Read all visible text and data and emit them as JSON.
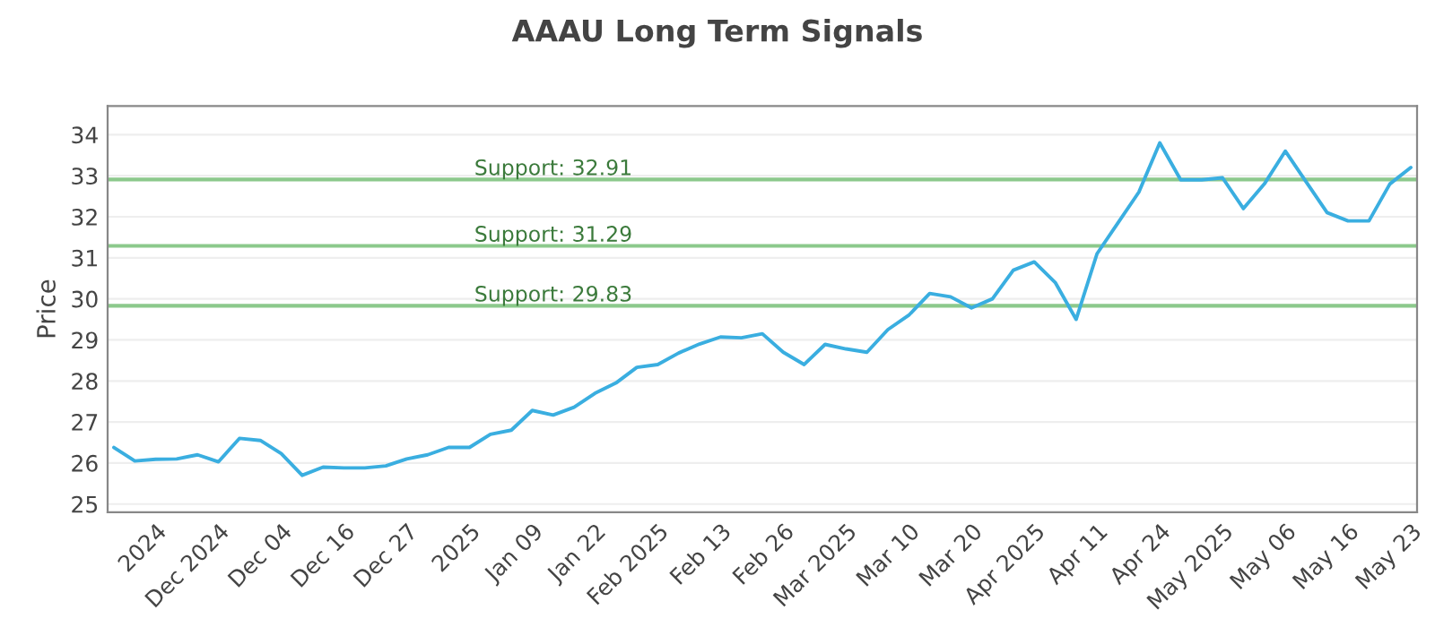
{
  "chart_data": {
    "type": "line",
    "title": "AAAU Long Term Signals",
    "ylabel": "Price",
    "categories": [
      null,
      null,
      "2024",
      null,
      null,
      "Dec 2024",
      null,
      null,
      "Dec 04",
      null,
      null,
      "Dec 16",
      null,
      null,
      "Dec 27",
      null,
      null,
      "2025",
      null,
      null,
      "Jan 09",
      null,
      null,
      "Jan 22",
      null,
      null,
      "Feb 2025",
      null,
      null,
      "Feb 13",
      null,
      null,
      "Feb 26",
      null,
      null,
      "Mar 2025",
      null,
      null,
      "Mar 10",
      null,
      null,
      "Mar 20",
      null,
      null,
      "Apr 2025",
      null,
      null,
      "Apr 11",
      null,
      null,
      "Apr 24",
      null,
      null,
      "May 2025",
      null,
      null,
      "May 06",
      null,
      null,
      "May 16",
      null,
      null,
      "May 23"
    ],
    "series": [
      {
        "color": "#3aaee0",
        "values": [
          26.38,
          26.05,
          26.09,
          26.1,
          26.2,
          26.03,
          26.6,
          26.55,
          26.23,
          25.7,
          25.9,
          25.88,
          25.88,
          25.93,
          26.1,
          26.2,
          26.38,
          26.38,
          26.7,
          26.8,
          27.28,
          27.17,
          27.36,
          27.7,
          27.95,
          28.33,
          28.4,
          28.68,
          28.9,
          29.07,
          29.05,
          29.15,
          28.7,
          28.4,
          28.89,
          28.78,
          28.7,
          29.25,
          29.6,
          30.13,
          30.05,
          29.78,
          30.0,
          30.7,
          30.9,
          30.4,
          29.5,
          31.1,
          31.85,
          32.6,
          33.8,
          32.9,
          32.9,
          32.95,
          32.2,
          32.8,
          33.6,
          32.85,
          32.1,
          31.9,
          31.9,
          32.8,
          33.2
        ]
      }
    ],
    "ylim": [
      24.8,
      34.7
    ],
    "yticks": [
      25,
      26,
      27,
      28,
      29,
      30,
      31,
      32,
      33,
      34
    ],
    "grid": "y",
    "marker": "none",
    "line_style": "solid",
    "ref_lines": [
      {
        "axis": "y",
        "value": 32.91,
        "label": "Support: 32.91",
        "color": "#8cc98c"
      },
      {
        "axis": "y",
        "value": 31.29,
        "label": "Support: 31.29",
        "color": "#8cc98c"
      },
      {
        "axis": "y",
        "value": 29.83,
        "label": "Support: 29.83",
        "color": "#8cc98c"
      }
    ]
  }
}
